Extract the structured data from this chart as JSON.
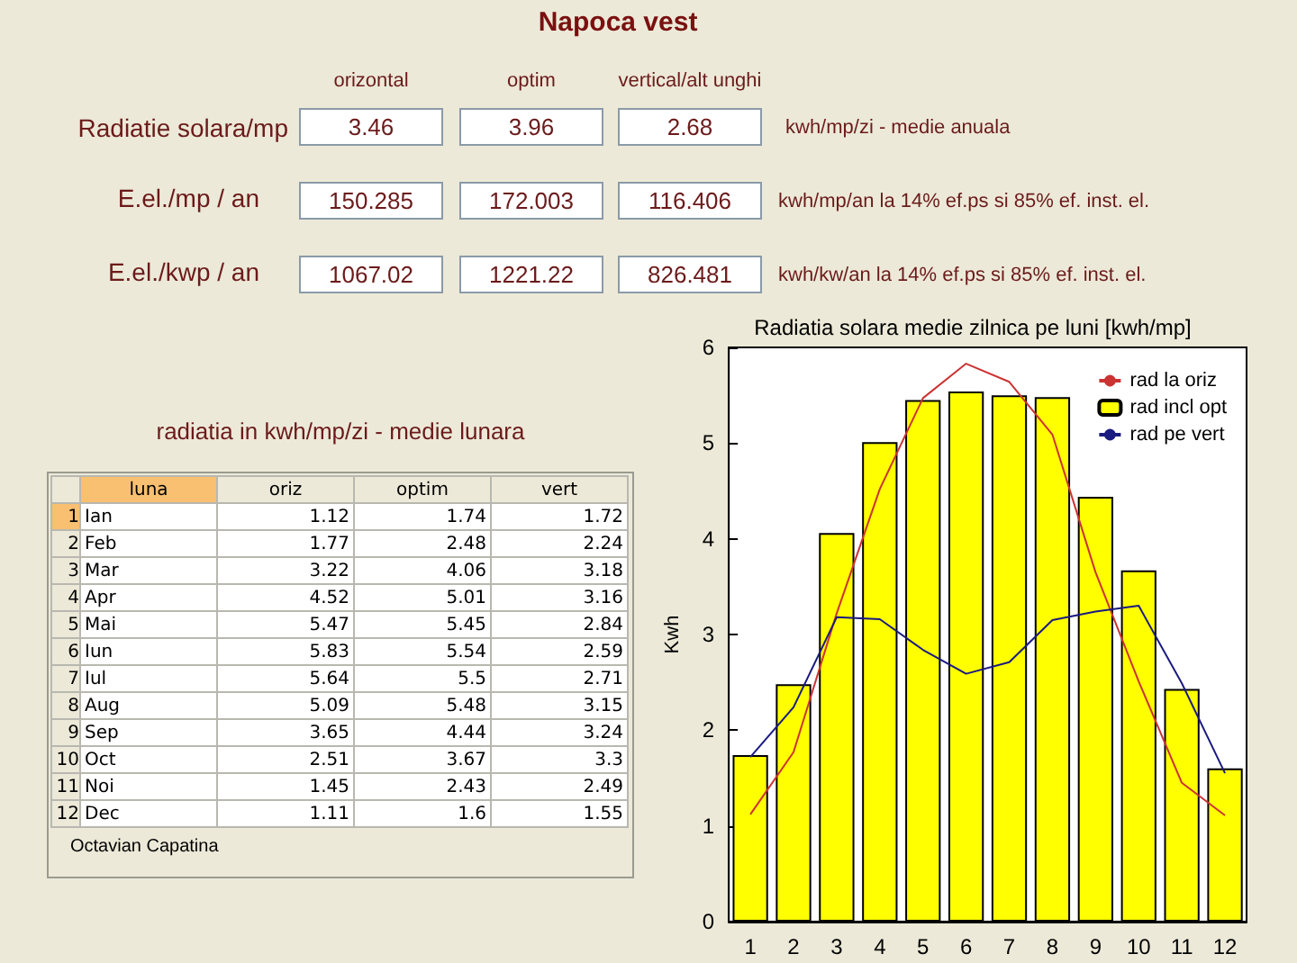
{
  "chart_data": {
    "type": "bar",
    "title": "Napoca vest",
    "subtitle": "Radiatia solara medie zilnica pe luni [kwh/mp]",
    "ylabel": "Kwh",
    "categories": [
      "1",
      "2",
      "3",
      "4",
      "5",
      "6",
      "7",
      "8",
      "9",
      "10",
      "11",
      "12"
    ],
    "series": [
      {
        "name": "rad la oriz",
        "type": "line",
        "color": "#cc3333",
        "values": [
          1.12,
          1.77,
          3.22,
          4.52,
          5.47,
          5.83,
          5.64,
          5.09,
          3.65,
          2.51,
          1.45,
          1.11
        ]
      },
      {
        "name": "rad incl opt",
        "color": "#ffff00",
        "values": [
          1.74,
          2.48,
          4.06,
          5.01,
          5.45,
          5.54,
          5.5,
          5.48,
          4.44,
          3.67,
          2.43,
          1.6
        ]
      },
      {
        "name": "rad pe vert",
        "type": "line",
        "color": "#1a1a80",
        "values": [
          1.72,
          2.24,
          3.18,
          3.16,
          2.84,
          2.59,
          2.71,
          3.15,
          3.24,
          3.3,
          2.49,
          1.55
        ]
      }
    ],
    "ylim": [
      0,
      6
    ],
    "yticks": [
      0,
      1,
      2,
      3,
      4,
      5,
      6
    ],
    "grid": false,
    "legend": "top right",
    "annotations": [
      "orizontal",
      "optim",
      "vertical/alt unghi",
      "Radiatie solara/mp",
      "E.el./mp / an",
      "E.el./kwp / an",
      "3.46",
      "3.96",
      "2.68",
      "150.285",
      "172.003",
      "116.406",
      "1067.02",
      "1221.22",
      "826.481",
      "kwh/mp/zi - medie anuala",
      "kwh/mp/an la 14% ef.ps si 85% ef. inst. el.",
      "kwh/kw/an la 14% ef.ps si 85% ef. inst. el.",
      "radiatia in kwh/mp/zi - medie lunara",
      "luna",
      "oriz",
      "optim",
      "vert",
      "Ian",
      "Feb",
      "Mar",
      "Apr",
      "Mai",
      "Iun",
      "Iul",
      "Aug",
      "Sep",
      "Oct",
      "Noi",
      "Dec",
      "Octavian Capatina",
      "1.12",
      "1.74",
      "1.72",
      "1.77",
      "2.48",
      "2.24",
      "3.22",
      "4.06",
      "3.18",
      "4.52",
      "5.01",
      "3.16",
      "5.47",
      "5.45",
      "2.84",
      "5.83",
      "5.54",
      "2.59",
      "5.64",
      "5.5",
      "2.71",
      "5.09",
      "5.48",
      "3.15",
      "3.65",
      "4.44",
      "3.24",
      "2.51",
      "3.67",
      "3.3",
      "1.45",
      "2.43",
      "2.49",
      "1.11",
      "1.6",
      "1.55"
    ]
  }
}
